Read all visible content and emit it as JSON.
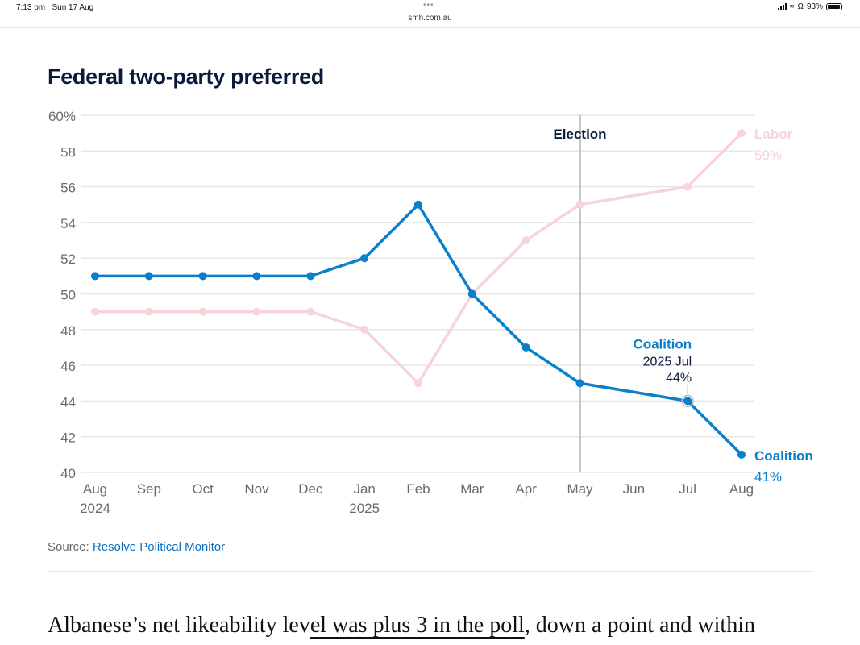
{
  "status_bar": {
    "time": "7:13 pm",
    "date": "Sun 17 Aug",
    "url": "smh.com.au",
    "battery": "93%",
    "icons": [
      "signal-icon",
      "wifi-icon",
      "headphones-icon",
      "battery-icon"
    ]
  },
  "article": {
    "source_label": "Source:",
    "source_link": "Resolve Political Monitor",
    "body_text_before": "Albanese’s net likeability lev",
    "body_text_underlined": "el was plus 3 in the poll",
    "body_text_after": ", down a point and within"
  },
  "chart_data": {
    "type": "line",
    "title": "Federal two-party preferred",
    "xlabel": "",
    "ylabel": "",
    "ylim": [
      40,
      60
    ],
    "y_ticks": [
      40,
      42,
      44,
      46,
      48,
      50,
      52,
      54,
      56,
      58,
      60
    ],
    "y_tick_labels": [
      "40",
      "42",
      "44",
      "46",
      "48",
      "50",
      "52",
      "54",
      "56",
      "58",
      "60%"
    ],
    "categories": [
      "Aug",
      "Sep",
      "Oct",
      "Nov",
      "Dec",
      "Jan",
      "Feb",
      "Mar",
      "Apr",
      "May",
      "Jun",
      "Jul",
      "Aug"
    ],
    "category_sublabels": [
      "2024",
      "",
      "",
      "",
      "",
      "2025",
      "",
      "",
      "",
      "",
      "",
      "",
      ""
    ],
    "grid": true,
    "series": [
      {
        "name": "Labor",
        "color": "#f6d4d8",
        "values": [
          49,
          49,
          49,
          49,
          49,
          48,
          45,
          50,
          53,
          55,
          null,
          56,
          59
        ],
        "end_label": "Labor",
        "end_value_label": "59%"
      },
      {
        "name": "Coalition",
        "color": "#0a7fcc",
        "values": [
          51,
          51,
          51,
          51,
          51,
          52,
          55,
          50,
          47,
          45,
          null,
          44,
          41
        ],
        "end_label": "Coalition",
        "end_value_label": "41%"
      }
    ],
    "annotations": [
      {
        "type": "vertical-line",
        "category_index": 9,
        "label": "Election"
      },
      {
        "type": "tooltip",
        "series": "Coalition",
        "category_index": 11,
        "title": "Coalition",
        "line1": "2025 Jul",
        "line2": "44%"
      }
    ]
  }
}
